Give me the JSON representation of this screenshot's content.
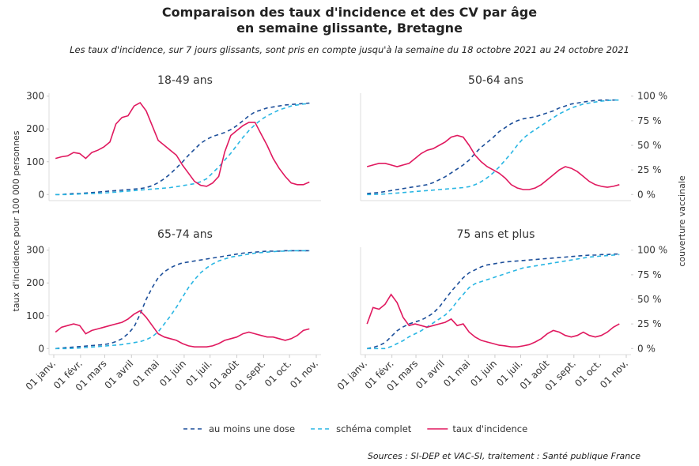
{
  "title": "Comparaison des taux d'incidence et des CV par âge\nen semaine glissante, Bretagne",
  "subtitle": "Les taux d'incidence, sur 7 jours glissants, sont pris en compte jusqu'à la semaine du 18 octobre 2021 au 24 octobre 2021",
  "ylabel": "taux d'incidence pour 100 000 personnes",
  "y2label": "couverture vaccinale",
  "source": "Sources : SI-DEP et VAC-SI, traitement : Santé publique France",
  "chart_data": [
    {
      "type": "line",
      "title": "18-49 ans",
      "x": [
        "01-03",
        "01-10",
        "01-17",
        "01-24",
        "01-31",
        "02-07",
        "02-14",
        "02-21",
        "02-28",
        "03-07",
        "03-14",
        "03-21",
        "03-28",
        "04-04",
        "04-11",
        "04-18",
        "04-25",
        "05-02",
        "05-09",
        "05-16",
        "05-23",
        "05-30",
        "06-06",
        "06-13",
        "06-20",
        "06-27",
        "07-04",
        "07-11",
        "07-18",
        "07-25",
        "08-01",
        "08-08",
        "08-15",
        "08-22",
        "08-29",
        "09-05",
        "09-12",
        "09-19",
        "09-26",
        "10-03",
        "10-10",
        "10-17",
        "10-24"
      ],
      "xlim": [
        "01-01",
        "11-01"
      ],
      "ylim": [
        -9,
        309
      ],
      "y2lim": [
        -3,
        103
      ],
      "yticks": [
        0,
        100,
        200,
        300
      ],
      "series": [
        {
          "name": "au moins une dose",
          "color": "#1d4f9a",
          "linestyle": "dashed",
          "axis": "y2",
          "values": [
            0,
            0,
            0.5,
            1,
            1,
            1.5,
            2,
            2.5,
            3,
            3.5,
            4,
            4.5,
            5,
            5.5,
            6,
            7,
            9,
            12,
            16,
            21,
            27,
            33,
            40,
            46,
            52,
            56,
            59,
            61,
            63,
            66,
            70,
            75,
            80,
            84,
            86,
            88,
            89,
            90,
            91,
            91.5,
            92,
            92.5,
            93
          ]
        },
        {
          "name": "schéma complet",
          "color": "#29b6e3",
          "linestyle": "dashed",
          "axis": "y2",
          "values": [
            0,
            0,
            0,
            0.2,
            0.5,
            0.8,
            1,
            1.2,
            1.5,
            2,
            2.5,
            3,
            3.5,
            4,
            4.5,
            5,
            5.5,
            6,
            6.5,
            7,
            8,
            9,
            10,
            11,
            13,
            16,
            22,
            28,
            35,
            42,
            50,
            58,
            65,
            71,
            76,
            80,
            83,
            86,
            88,
            90,
            91,
            92,
            92.5
          ]
        },
        {
          "name": "taux d'incidence",
          "color": "#e0195f",
          "linestyle": "solid",
          "values": [
            110,
            115,
            118,
            128,
            125,
            110,
            128,
            135,
            145,
            160,
            215,
            235,
            240,
            270,
            280,
            255,
            210,
            165,
            150,
            135,
            120,
            90,
            65,
            40,
            28,
            25,
            35,
            55,
            130,
            180,
            195,
            210,
            220,
            220,
            185,
            150,
            110,
            80,
            55,
            35,
            30,
            30,
            38
          ]
        }
      ]
    },
    {
      "type": "line",
      "title": "50-64 ans",
      "x": [
        "01-03",
        "01-10",
        "01-17",
        "01-24",
        "01-31",
        "02-07",
        "02-14",
        "02-21",
        "02-28",
        "03-07",
        "03-14",
        "03-21",
        "03-28",
        "04-04",
        "04-11",
        "04-18",
        "04-25",
        "05-02",
        "05-09",
        "05-16",
        "05-23",
        "05-30",
        "06-06",
        "06-13",
        "06-20",
        "06-27",
        "07-04",
        "07-11",
        "07-18",
        "07-25",
        "08-01",
        "08-08",
        "08-15",
        "08-22",
        "08-29",
        "09-05",
        "09-12",
        "09-19",
        "09-26",
        "10-03",
        "10-10",
        "10-17",
        "10-24"
      ],
      "xlim": [
        "01-01",
        "11-01"
      ],
      "ylim": [
        -9,
        309
      ],
      "y2lim": [
        -3,
        103
      ],
      "y2ticks": [
        {
          "value": 0,
          "label": "0 %"
        },
        {
          "value": 25,
          "label": "25 %"
        },
        {
          "value": 50,
          "label": "50 %"
        },
        {
          "value": 75,
          "label": "75 %"
        },
        {
          "value": 100,
          "label": "100 %"
        }
      ],
      "series": [
        {
          "name": "au moins une dose",
          "color": "#1d4f9a",
          "linestyle": "dashed",
          "axis": "y2",
          "values": [
            1,
            1.5,
            2,
            3,
            4,
            5,
            6,
            7,
            8,
            9,
            10,
            12,
            15,
            18,
            22,
            26,
            30,
            35,
            42,
            48,
            53,
            58,
            64,
            68,
            72,
            75,
            77,
            78,
            79,
            81,
            83,
            85,
            88,
            90,
            92,
            93,
            94,
            95,
            95.5,
            96,
            96,
            96,
            96
          ]
        },
        {
          "name": "schéma complet",
          "color": "#29b6e3",
          "linestyle": "dashed",
          "axis": "y2",
          "values": [
            0,
            0,
            0.3,
            0.5,
            1,
            1.5,
            2,
            2.5,
            3,
            3.5,
            4,
            4.5,
            5,
            5.5,
            6,
            6.5,
            7,
            8,
            10,
            13,
            17,
            22,
            28,
            35,
            42,
            50,
            57,
            62,
            66,
            70,
            74,
            78,
            82,
            85,
            88,
            90,
            92,
            93,
            94,
            95,
            95.5,
            96,
            96
          ]
        },
        {
          "name": "taux d'incidence",
          "color": "#e0195f",
          "linestyle": "solid",
          "values": [
            85,
            90,
            95,
            95,
            90,
            85,
            90,
            95,
            110,
            125,
            135,
            140,
            150,
            160,
            175,
            180,
            175,
            150,
            120,
            100,
            85,
            75,
            65,
            50,
            30,
            20,
            15,
            15,
            20,
            30,
            45,
            60,
            75,
            85,
            80,
            70,
            55,
            40,
            30,
            25,
            22,
            25,
            30
          ]
        }
      ]
    },
    {
      "type": "line",
      "title": "65-74 ans",
      "x": [
        "01-03",
        "01-10",
        "01-17",
        "01-24",
        "01-31",
        "02-07",
        "02-14",
        "02-21",
        "02-28",
        "03-07",
        "03-14",
        "03-21",
        "03-28",
        "04-04",
        "04-11",
        "04-18",
        "04-25",
        "05-02",
        "05-09",
        "05-16",
        "05-23",
        "05-30",
        "06-06",
        "06-13",
        "06-20",
        "06-27",
        "07-04",
        "07-11",
        "07-18",
        "07-25",
        "08-01",
        "08-08",
        "08-15",
        "08-22",
        "08-29",
        "09-05",
        "09-12",
        "09-19",
        "09-26",
        "10-03",
        "10-10",
        "10-17",
        "10-24"
      ],
      "xlim": [
        "01-01",
        "11-01"
      ],
      "ylim": [
        -9,
        309
      ],
      "y2lim": [
        -3,
        103
      ],
      "yticks": [
        0,
        100,
        200,
        300
      ],
      "xticks": [
        {
          "value": "01-01",
          "label": "01 janv."
        },
        {
          "value": "02-01",
          "label": "01 févr."
        },
        {
          "value": "03-01",
          "label": "01 mars"
        },
        {
          "value": "04-01",
          "label": "01 avril"
        },
        {
          "value": "05-01",
          "label": "01 mai"
        },
        {
          "value": "06-01",
          "label": "01 juin"
        },
        {
          "value": "07-01",
          "label": "01 juil."
        },
        {
          "value": "08-01",
          "label": "01 août"
        },
        {
          "value": "09-01",
          "label": "01 sept."
        },
        {
          "value": "10-01",
          "label": "01 oct."
        },
        {
          "value": "11-01",
          "label": "01 nov."
        }
      ],
      "series": [
        {
          "name": "au moins une dose",
          "color": "#1d4f9a",
          "linestyle": "dashed",
          "axis": "y2",
          "values": [
            0,
            0.5,
            1,
            1.5,
            2,
            2.5,
            3,
            3.5,
            4,
            5,
            7,
            10,
            15,
            22,
            35,
            50,
            62,
            72,
            78,
            82,
            85,
            87,
            88,
            89,
            90,
            91,
            92,
            93,
            94,
            95,
            96,
            97,
            97.5,
            98,
            98.5,
            99,
            99,
            99,
            99.5,
            99.5,
            99.5,
            99.5,
            99.5
          ]
        },
        {
          "name": "schéma complet",
          "color": "#29b6e3",
          "linestyle": "dashed",
          "axis": "y2",
          "values": [
            0,
            0,
            0,
            0.2,
            0.5,
            1,
            1.5,
            2,
            2.5,
            3,
            3.5,
            4,
            5,
            6,
            7,
            9,
            12,
            17,
            25,
            33,
            42,
            52,
            62,
            70,
            77,
            82,
            86,
            89,
            91,
            93,
            94,
            95,
            96,
            97,
            97.5,
            98,
            98.5,
            99,
            99,
            99.5,
            99.5,
            99.5,
            99.5
          ]
        },
        {
          "name": "taux d'incidence",
          "color": "#e0195f",
          "linestyle": "solid",
          "values": [
            50,
            65,
            70,
            75,
            70,
            45,
            55,
            60,
            65,
            70,
            75,
            80,
            90,
            105,
            115,
            95,
            70,
            45,
            35,
            30,
            25,
            15,
            8,
            5,
            5,
            5,
            8,
            15,
            25,
            30,
            35,
            45,
            50,
            45,
            40,
            35,
            35,
            30,
            25,
            30,
            40,
            55,
            60
          ]
        }
      ]
    },
    {
      "type": "line",
      "title": "75 ans et plus",
      "x": [
        "01-03",
        "01-10",
        "01-17",
        "01-24",
        "01-31",
        "02-07",
        "02-14",
        "02-21",
        "02-28",
        "03-07",
        "03-14",
        "03-21",
        "03-28",
        "04-04",
        "04-11",
        "04-18",
        "04-25",
        "05-02",
        "05-09",
        "05-16",
        "05-23",
        "05-30",
        "06-06",
        "06-13",
        "06-20",
        "06-27",
        "07-04",
        "07-11",
        "07-18",
        "07-25",
        "08-01",
        "08-08",
        "08-15",
        "08-22",
        "08-29",
        "09-05",
        "09-12",
        "09-19",
        "09-26",
        "10-03",
        "10-10",
        "10-17",
        "10-24"
      ],
      "xlim": [
        "01-01",
        "11-01"
      ],
      "ylim": [
        -9,
        309
      ],
      "y2lim": [
        -3,
        103
      ],
      "y2ticks": [
        {
          "value": 0,
          "label": "0 %"
        },
        {
          "value": 25,
          "label": "25 %"
        },
        {
          "value": 50,
          "label": "50 %"
        },
        {
          "value": 75,
          "label": "75 %"
        },
        {
          "value": 100,
          "label": "100 %"
        }
      ],
      "xticks": [
        {
          "value": "01-01",
          "label": "01 janv."
        },
        {
          "value": "02-01",
          "label": "01 févr."
        },
        {
          "value": "03-01",
          "label": "01 mars"
        },
        {
          "value": "04-01",
          "label": "01 avril"
        },
        {
          "value": "05-01",
          "label": "01 mai"
        },
        {
          "value": "06-01",
          "label": "01 juin"
        },
        {
          "value": "07-01",
          "label": "01 juil."
        },
        {
          "value": "08-01",
          "label": "01 août"
        },
        {
          "value": "09-01",
          "label": "01 sept."
        },
        {
          "value": "10-01",
          "label": "01 oct."
        },
        {
          "value": "11-01",
          "label": "01 nov."
        }
      ],
      "series": [
        {
          "name": "au moins une dose",
          "color": "#1d4f9a",
          "linestyle": "dashed",
          "axis": "y2",
          "values": [
            0,
            1,
            3,
            6,
            12,
            18,
            22,
            25,
            27,
            29,
            32,
            36,
            42,
            50,
            58,
            65,
            72,
            77,
            80,
            83,
            85,
            86,
            87,
            88,
            88.5,
            89,
            89.5,
            90,
            90.5,
            91,
            91.5,
            92,
            92.5,
            93,
            93.5,
            94,
            94.5,
            95,
            95,
            95.5,
            95.5,
            96,
            96
          ]
        },
        {
          "name": "schéma complet",
          "color": "#29b6e3",
          "linestyle": "dashed",
          "axis": "y2",
          "values": [
            0,
            0,
            0,
            0,
            2,
            5,
            8,
            12,
            15,
            18,
            22,
            26,
            30,
            34,
            40,
            48,
            55,
            62,
            66,
            68,
            70,
            72,
            74,
            76,
            78,
            80,
            82,
            83,
            84,
            85,
            86,
            87,
            88,
            89,
            90,
            91,
            92,
            93,
            93.5,
            94,
            94.5,
            95,
            95.5
          ]
        },
        {
          "name": "taux d'incidence",
          "color": "#e0195f",
          "linestyle": "solid",
          "values": [
            75,
            125,
            120,
            135,
            165,
            140,
            95,
            70,
            75,
            70,
            65,
            70,
            75,
            80,
            90,
            70,
            75,
            50,
            35,
            25,
            20,
            15,
            10,
            8,
            5,
            5,
            8,
            12,
            20,
            30,
            45,
            55,
            50,
            40,
            35,
            40,
            50,
            40,
            35,
            40,
            50,
            65,
            75
          ]
        }
      ]
    }
  ]
}
